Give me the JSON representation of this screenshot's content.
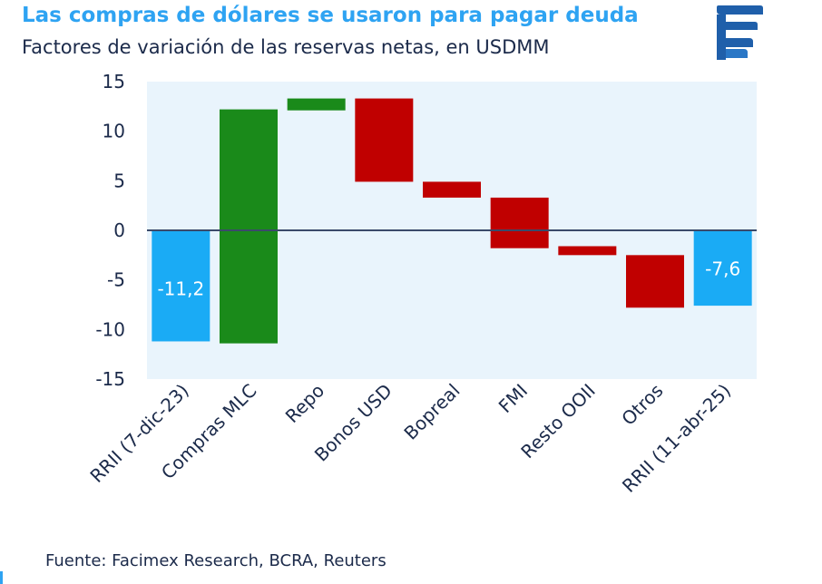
{
  "header": {
    "title": "Las compras de dólares se usaron para pagar deuda",
    "subtitle": "Factores de variación de las reservas netas, en USDMM"
  },
  "footer": {
    "source": "Fuente: Facimex Research, BCRA, Reuters"
  },
  "logo": {
    "icon": "facimex-logo-icon"
  },
  "colors": {
    "total": "#1aabf5",
    "increase": "#1a8a1a",
    "decrease": "#c00000",
    "plot_background": "#e9f4fc",
    "zero_line": "#3a4a6a"
  },
  "chart_data": {
    "type": "bar",
    "subtype": "waterfall",
    "categories": [
      "RRII (7-dic-23)",
      "Compras MLC",
      "Repo",
      "Bonos USD",
      "Bopreal",
      "FMI",
      "Resto OOII",
      "Otros",
      "RRII (11-abr-25)"
    ],
    "bars": [
      {
        "category": "RRII (7-dic-23)",
        "kind": "total",
        "start": 0,
        "end": -11.2,
        "label": "-11,2"
      },
      {
        "category": "Compras MLC",
        "kind": "increase",
        "start": -11.4,
        "end": 12.2
      },
      {
        "category": "Repo",
        "kind": "increase",
        "start": 12.1,
        "end": 13.3
      },
      {
        "category": "Bonos USD",
        "kind": "decrease",
        "start": 13.3,
        "end": 4.9
      },
      {
        "category": "Bopreal",
        "kind": "decrease",
        "start": 4.9,
        "end": 3.3
      },
      {
        "category": "FMI",
        "kind": "decrease",
        "start": 3.3,
        "end": -1.8
      },
      {
        "category": "Resto OOII",
        "kind": "decrease",
        "start": -1.6,
        "end": -2.5
      },
      {
        "category": "Otros",
        "kind": "decrease",
        "start": -2.5,
        "end": -7.8
      },
      {
        "category": "RRII (11-abr-25)",
        "kind": "total",
        "start": 0,
        "end": -7.6,
        "label": "-7,6"
      }
    ],
    "yticks": [
      "15",
      "10",
      "5",
      "0",
      "-5",
      "-10",
      "-15"
    ],
    "ylim": [
      -15,
      15
    ],
    "grid": false,
    "legend": "none"
  }
}
